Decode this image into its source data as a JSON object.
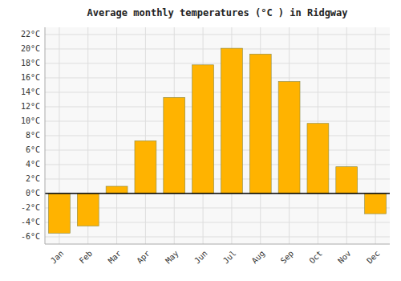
{
  "chart_data": {
    "type": "bar",
    "title": "Average monthly temperatures (°C ) in Ridgway",
    "categories": [
      "Jan",
      "Feb",
      "Mar",
      "Apr",
      "May",
      "Jun",
      "Jul",
      "Aug",
      "Sep",
      "Oct",
      "Nov",
      "Dec"
    ],
    "values": [
      -5.5,
      -4.5,
      1.0,
      7.3,
      13.3,
      17.8,
      20.1,
      19.3,
      15.5,
      9.7,
      3.7,
      -2.8
    ],
    "color": "#FFB300",
    "ylim": [
      -7,
      23
    ],
    "yticks": [
      {
        "value": -6,
        "label": "-6°C"
      },
      {
        "value": -4,
        "label": "-4°C"
      },
      {
        "value": -2,
        "label": "-2°C"
      },
      {
        "value": 0,
        "label": "0°C"
      },
      {
        "value": 2,
        "label": "2°C"
      },
      {
        "value": 4,
        "label": "4°C"
      },
      {
        "value": 6,
        "label": "6°C"
      },
      {
        "value": 8,
        "label": "8°C"
      },
      {
        "value": 10,
        "label": "10°C"
      },
      {
        "value": 12,
        "label": "12°C"
      },
      {
        "value": 14,
        "label": "14°C"
      },
      {
        "value": 16,
        "label": "16°C"
      },
      {
        "value": 18,
        "label": "18°C"
      },
      {
        "value": 20,
        "label": "20°C"
      },
      {
        "value": 22,
        "label": "22°C"
      }
    ],
    "grid": true
  }
}
